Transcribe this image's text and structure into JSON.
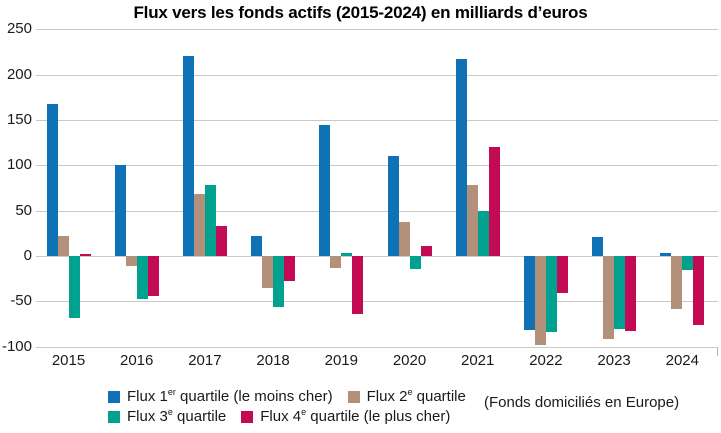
{
  "title": "Flux vers les fonds actifs (2015-2024) en milliards d’euros",
  "note": "(Fonds domiciliés en Europe)",
  "colors": {
    "q1_blue": "#0e72b4",
    "q2_tan": "#b3907a",
    "q3_teal": "#00a18e",
    "q4_crimson": "#c30a55",
    "gridline": "#c9c9c9",
    "text": "#1a1a1a"
  },
  "chart_data": {
    "type": "bar",
    "title": "Flux vers les fonds actifs (2015-2024) en milliards d’euros",
    "xlabel": "",
    "ylabel": "milliards d’euros",
    "categories": [
      "2015",
      "2016",
      "2017",
      "2018",
      "2019",
      "2020",
      "2021",
      "2022",
      "2023",
      "2024"
    ],
    "series": [
      {
        "name": "Flux 1er quartile (le moins cher)",
        "label_pre": "Flux 1",
        "label_sup": "er",
        "label_post": " quartile (le moins cher)",
        "color": "#0e72b4",
        "values": [
          168,
          100,
          221,
          22,
          145,
          110,
          217,
          -81,
          21,
          3
        ]
      },
      {
        "name": "Flux 2e quartile",
        "label_pre": "Flux 2",
        "label_sup": "e",
        "label_post": " quartile",
        "color": "#b3907a",
        "values": [
          22,
          -11,
          68,
          -35,
          -13,
          38,
          78,
          -98,
          -91,
          -58
        ]
      },
      {
        "name": "Flux 3e quartile",
        "label_pre": "Flux 3",
        "label_sup": "e",
        "label_post": " quartile",
        "color": "#00a18e",
        "values": [
          -68,
          -47,
          78,
          -56,
          3,
          -14,
          50,
          -84,
          -80,
          -15
        ]
      },
      {
        "name": "Flux 4e quartile (le plus cher)",
        "label_pre": "Flux 4",
        "label_sup": "e",
        "label_post": " quartile (le plus cher)",
        "color": "#c30a55",
        "values": [
          2,
          -44,
          33,
          -27,
          -64,
          11,
          120,
          -41,
          -83,
          -76
        ]
      }
    ],
    "ylim": [
      -100,
      250
    ],
    "ytick_step": 50,
    "yticks": [
      250,
      200,
      150,
      100,
      50,
      0,
      -50,
      -100
    ],
    "grid": true,
    "legend_position": "bottom",
    "legend_rows": [
      [
        0,
        1
      ],
      [
        2,
        3
      ]
    ],
    "note": "(Fonds domiciliés en Europe)"
  }
}
